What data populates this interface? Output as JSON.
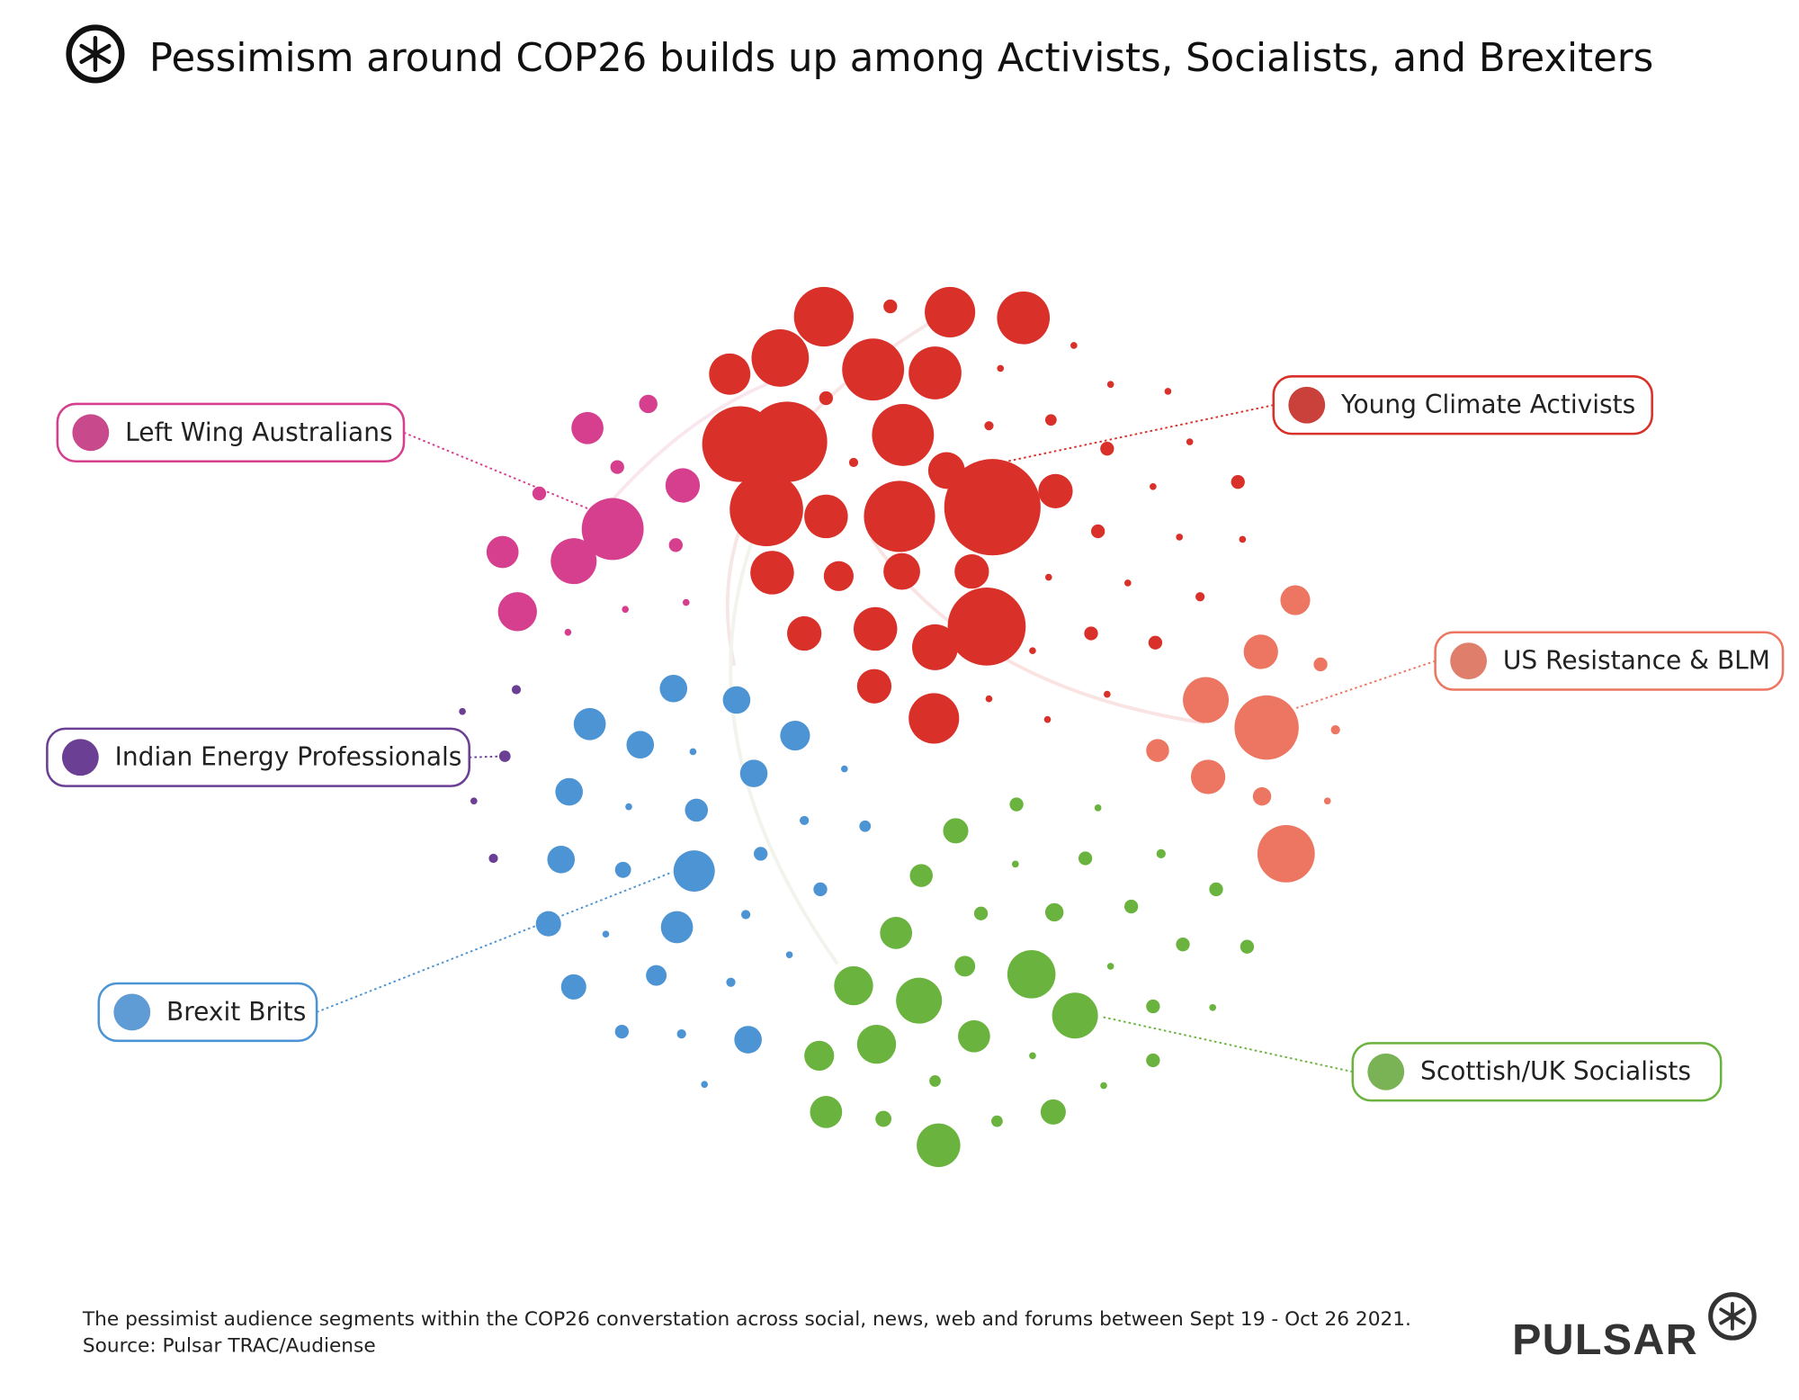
{
  "header": {
    "title": "Pessimism around COP26 builds up among Activists, Socialists, and Brexiters",
    "logo_icon": "pulsar-asterisk-icon"
  },
  "segments": [
    {
      "key": "red",
      "label": "Young Climate Activists",
      "color": "#d9302a",
      "swatch": "#c9413a"
    },
    {
      "key": "pink",
      "label": "Left Wing Australians",
      "color": "#d63f8e",
      "swatch": "#c94a8c"
    },
    {
      "key": "salmon",
      "label": "US Resistance & BLM",
      "color": "#ec7661",
      "swatch": "#e07e6c"
    },
    {
      "key": "purple",
      "label": "Indian Energy Professionals",
      "color": "#6b3f94",
      "swatch": "#6b3f94"
    },
    {
      "key": "blue",
      "label": "Brexit Brits",
      "color": "#4d94d4",
      "swatch": "#5f9bd5"
    },
    {
      "key": "green",
      "label": "Scottish/UK Socialists",
      "color": "#6ab33e",
      "swatch": "#7ab356"
    }
  ],
  "footer": {
    "note": "The pessimist audience segments within the COP26 converstation across social, news, web and forums between Sept 19  - Oct 26 2021.",
    "source": "Source: Pulsar TRAC/Audiense",
    "brand": "PULSAR"
  }
}
